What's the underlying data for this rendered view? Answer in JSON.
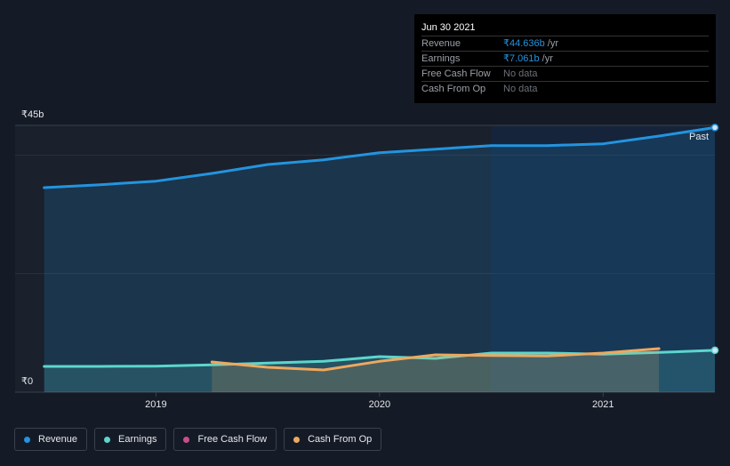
{
  "chart_data": {
    "type": "line",
    "x": [
      2018.5,
      2018.75,
      2019.0,
      2019.25,
      2019.5,
      2019.75,
      2020.0,
      2020.25,
      2020.5,
      2020.75,
      2021.0,
      2021.25,
      2021.5
    ],
    "series": [
      {
        "name": "Revenue",
        "color": "#2394df",
        "values": [
          34.5,
          35.0,
          35.6,
          36.9,
          38.4,
          39.2,
          40.4,
          41.0,
          41.6,
          41.6,
          41.9,
          43.2,
          44.636
        ]
      },
      {
        "name": "Earnings",
        "color": "#5cd6cc",
        "values": [
          4.35,
          4.35,
          4.4,
          4.6,
          4.9,
          5.2,
          6.0,
          5.7,
          6.6,
          6.6,
          6.4,
          6.7,
          7.061
        ]
      },
      {
        "name": "Free Cash Flow",
        "color": "#c94d8c",
        "values": [
          null,
          null,
          null,
          null,
          null,
          null,
          null,
          null,
          null,
          null,
          null,
          null,
          null
        ]
      },
      {
        "name": "Cash From Op",
        "color": "#eea85e",
        "values": [
          null,
          null,
          null,
          5.1,
          4.2,
          3.75,
          5.2,
          6.3,
          6.2,
          6.1,
          6.6,
          7.35,
          null
        ]
      }
    ],
    "xlim": [
      2018.37,
      2021.5
    ],
    "xticks": [
      2019,
      2020,
      2021
    ],
    "ylim": [
      0,
      45
    ],
    "yticks": [
      {
        "value": 0,
        "label": "₹0"
      },
      {
        "value": 45,
        "label": "₹45b"
      }
    ],
    "ygrid": [
      20,
      40
    ],
    "highlight_from": 2020.5,
    "annotation": "Past",
    "tooltip": {
      "title": "Jun 30 2021",
      "rows": [
        {
          "label": "Revenue",
          "value": "₹44.636b",
          "unit": "/yr"
        },
        {
          "label": "Earnings",
          "value": "₹7.061b",
          "unit": "/yr"
        },
        {
          "label": "Free Cash Flow",
          "value": "No data"
        },
        {
          "label": "Cash From Op",
          "value": "No data"
        }
      ]
    }
  }
}
